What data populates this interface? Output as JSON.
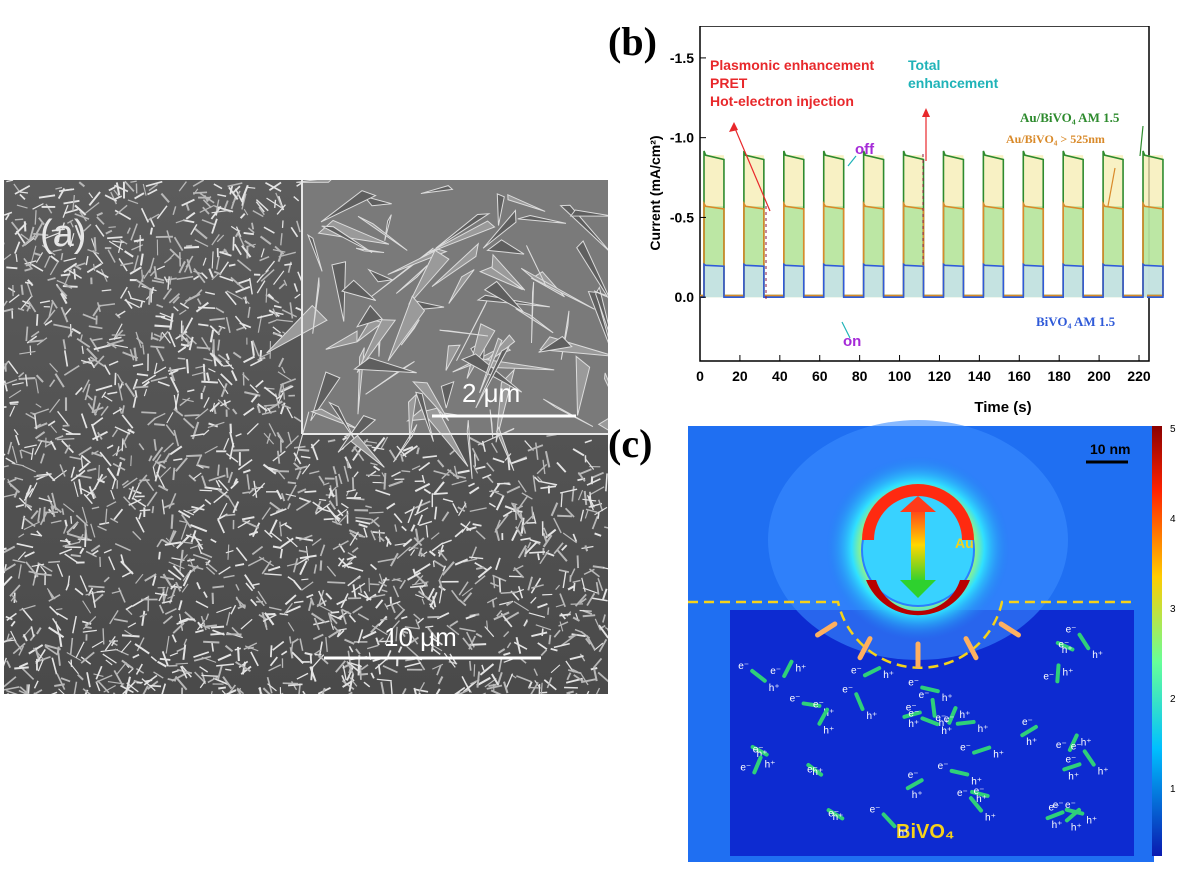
{
  "panels": {
    "a": {
      "letter": "(a)",
      "inset_scale": "2 μm",
      "main_scale": "10 μm"
    },
    "b": {
      "letter": "(b)"
    },
    "c": {
      "letter": "(c)"
    }
  },
  "chart_data": {
    "type": "line",
    "xlabel": "Time (s)",
    "ylabel": "Current (mA/cm²)",
    "xlim": [
      0,
      225
    ],
    "ylim": [
      0.4,
      -1.7
    ],
    "x_ticks": [
      0,
      20,
      40,
      60,
      80,
      100,
      120,
      140,
      160,
      180,
      200,
      220
    ],
    "y_ticks": [
      0.0,
      -0.5,
      -1.0,
      -1.5
    ],
    "cycle_period_s": 20,
    "light_on_duration_s": 10,
    "first_on_time_s": 2,
    "series": [
      {
        "name": "Au/BiVO4 AM 1.5",
        "color": "#2e8b2e",
        "on_current": -0.89,
        "dark_current": -0.01
      },
      {
        "name": "Au/BiVO4 > 525nm",
        "color": "#d98a2a",
        "on_current": -0.57,
        "dark_current": -0.01
      },
      {
        "name": "BiVO4 AM 1.5",
        "color": "#2f5ad8",
        "on_current": -0.2,
        "dark_current": 0.0
      }
    ],
    "annotations": {
      "plasmonic": [
        "Plasmonic enhancement",
        "PRET",
        "Hot-electron injection"
      ],
      "total": [
        "Total",
        "enhancement"
      ],
      "off": "off",
      "on": "on",
      "legend_au_am": "Au/BiVO₄ AM 1.5",
      "legend_au_525": "Au/BiVO₄ > 525nm",
      "legend_bivo4": "BiVO₄ AM 1.5"
    }
  },
  "field_map": {
    "scale_bar": "10 nm",
    "particle_label": "Au",
    "substrate_label": "BiVO₄",
    "colorbar_ticks": [
      "5",
      "4",
      "3",
      "2",
      "1"
    ],
    "electron": "e⁻",
    "hole": "h⁺"
  }
}
